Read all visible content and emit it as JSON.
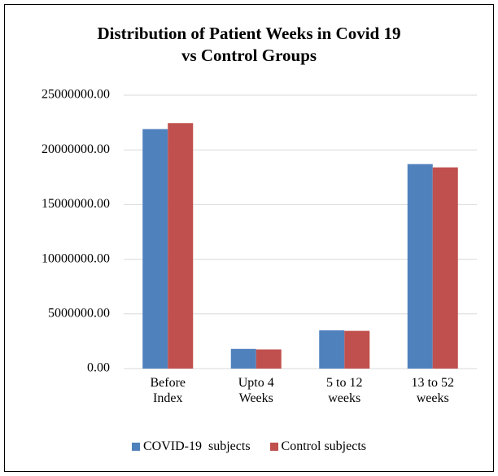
{
  "chart_data": {
    "type": "bar",
    "title": [
      "Distribution of Patient Weeks in Covid 19",
      "vs Control Groups"
    ],
    "categories": [
      "Before Index",
      "Upto 4 Weeks",
      "5 to 12 weeks",
      "13 to 52 weeks"
    ],
    "series": [
      {
        "name": "COVID-19  subjects",
        "color": "#4f81bd",
        "values": [
          21900000,
          1800000,
          3500000,
          18700000
        ]
      },
      {
        "name": "Control subjects",
        "color": "#c0504d",
        "values": [
          22450000,
          1750000,
          3450000,
          18400000
        ]
      }
    ],
    "ylim": [
      0,
      25000000
    ],
    "yticks": [
      {
        "value": 0,
        "label": "0.00"
      },
      {
        "value": 5000000,
        "label": "5000000.00"
      },
      {
        "value": 10000000,
        "label": "10000000.00"
      },
      {
        "value": 15000000,
        "label": "15000000.00"
      },
      {
        "value": 20000000,
        "label": "20000000.00"
      },
      {
        "value": 25000000,
        "label": "25000000.00"
      }
    ],
    "grid": true,
    "legend": "bottom"
  }
}
